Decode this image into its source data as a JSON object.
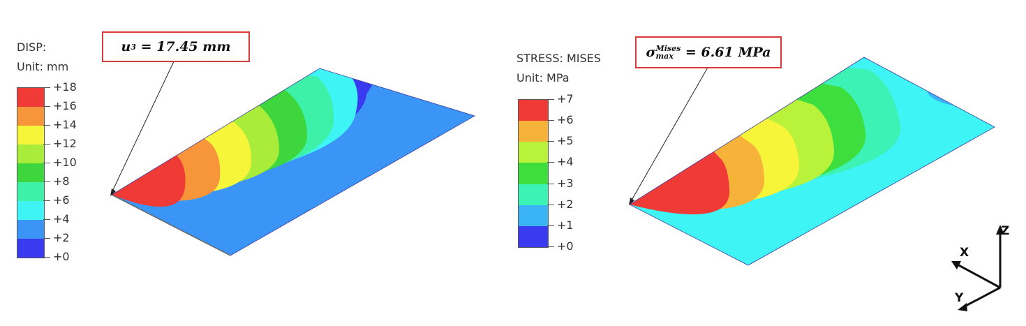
{
  "disp_legend": {
    "title": "DISP:",
    "unit": "Unit: mm",
    "ticks": [
      "+18",
      "+16",
      "+14",
      "+12",
      "+10",
      "+8",
      "+6",
      "+4",
      "+2",
      "+0"
    ],
    "colors": [
      "#f03a36",
      "#f7953a",
      "#f7f53a",
      "#a9ec3a",
      "#3dd63d",
      "#3df2a8",
      "#3ef4f4",
      "#3a95f7",
      "#3a3af0"
    ]
  },
  "stress_legend": {
    "title": "STRESS: MISES",
    "unit": "Unit: MPa",
    "ticks": [
      "+7",
      "+6",
      "+5",
      "+4",
      "+3",
      "+2",
      "+1",
      "+0"
    ],
    "colors": [
      "#f03a36",
      "#f7b23a",
      "#b9f23a",
      "#3dde3d",
      "#3df2b5",
      "#3ab4f5",
      "#3a3af0"
    ]
  },
  "callouts": {
    "disp": {
      "symbol": "u",
      "subscript": "3",
      "value": "= 17.45 mm"
    },
    "stress": {
      "symbol": "σ",
      "superscript": "Mises",
      "subscript": "max",
      "value": "= 6.61 MPa"
    }
  },
  "axes": {
    "x": "X",
    "y": "Y",
    "z": "Z"
  },
  "colors": {
    "callout_border": "#d93a3a"
  }
}
